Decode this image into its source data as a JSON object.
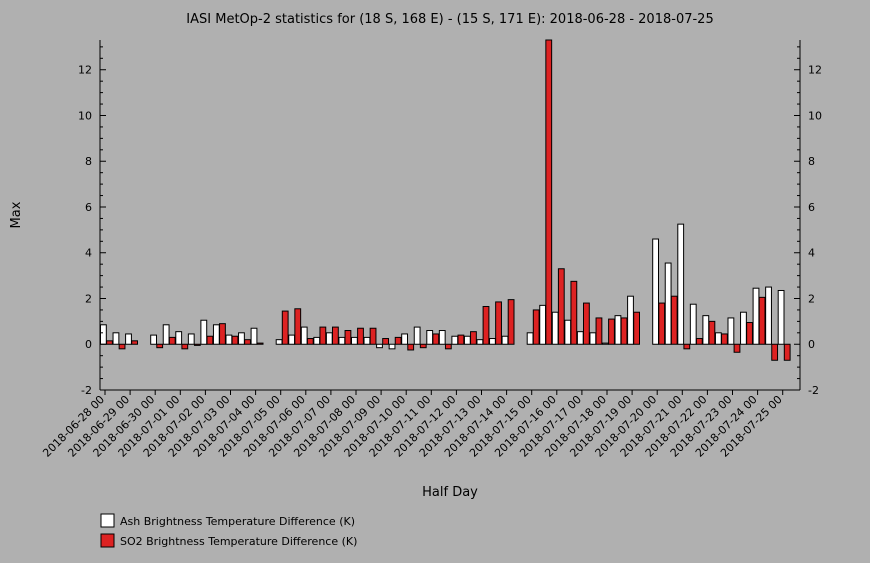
{
  "chart_data": {
    "type": "bar",
    "title": "IASI MetOp-2 statistics for (18 S, 168 E) - (15 S, 171 E): 2018-06-28 - 2018-07-25",
    "xlabel": "Half Day",
    "ylabel": "Max",
    "ylim": [
      -2,
      13.3
    ],
    "yticks": [
      -2,
      0,
      2,
      4,
      6,
      8,
      10,
      12
    ],
    "grid": false,
    "legend_position": "bottom-left",
    "x_tick_labels": [
      "2018-06-28 00",
      "2018-06-29 00",
      "2018-06-30 00",
      "2018-07-01 00",
      "2018-07-02 00",
      "2018-07-03 00",
      "2018-07-04 00",
      "2018-07-05 00",
      "2018-07-06 00",
      "2018-07-07 00",
      "2018-07-08 00",
      "2018-07-09 00",
      "2018-07-10 00",
      "2018-07-11 00",
      "2018-07-12 00",
      "2018-07-13 00",
      "2018-07-14 00",
      "2018-07-15 00",
      "2018-07-16 00",
      "2018-07-17 00",
      "2018-07-18 00",
      "2018-07-19 00",
      "2018-07-20 00",
      "2018-07-21 00",
      "2018-07-22 00",
      "2018-07-23 00",
      "2018-07-24 00",
      "2018-07-25 00"
    ],
    "series": [
      {
        "name": "Ash Brightness Temperature Difference (K)",
        "color": "#ffffff",
        "values": [
          0.85,
          0.5,
          0.45,
          null,
          0.4,
          0.85,
          0.55,
          0.45,
          1.05,
          0.85,
          0.4,
          0.5,
          0.7,
          null,
          0.2,
          0.4,
          0.75,
          0.3,
          0.5,
          0.3,
          0.3,
          0.3,
          -0.15,
          -0.2,
          0.45,
          0.75,
          0.6,
          0.6,
          0.35,
          0.35,
          0.2,
          0.25,
          0.35,
          null,
          0.5,
          1.7,
          1.4,
          1.05,
          0.55,
          0.5,
          0.05,
          1.25,
          2.1,
          null,
          4.6,
          3.55,
          5.25,
          1.75,
          1.25,
          0.5,
          1.15,
          1.4,
          2.45,
          2.5,
          2.35
        ]
      },
      {
        "name": "SO2 Brightness Temperature Difference (K)",
        "color": "#dd2222",
        "values": [
          0.15,
          -0.2,
          0.15,
          null,
          -0.15,
          0.3,
          -0.2,
          -0.05,
          0.35,
          0.9,
          0.35,
          0.2,
          0.05,
          null,
          1.45,
          1.55,
          0.25,
          0.75,
          0.75,
          0.6,
          0.7,
          0.7,
          0.25,
          0.3,
          -0.25,
          -0.15,
          0.45,
          -0.2,
          0.4,
          0.55,
          1.65,
          1.85,
          1.95,
          null,
          1.5,
          13.3,
          3.3,
          2.75,
          1.8,
          1.15,
          1.1,
          1.15,
          1.4,
          null,
          1.8,
          2.1,
          -0.2,
          0.25,
          1.0,
          0.45,
          -0.35,
          0.95,
          2.05,
          -0.7,
          -0.7
        ]
      }
    ]
  }
}
